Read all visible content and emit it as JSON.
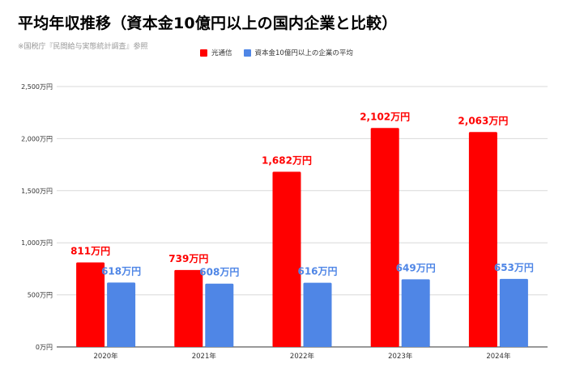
{
  "title": "平均年収推移（資本金10億円以上の国内企業と比較）",
  "subtitle": "※国税庁『民間給与実態統計調査』参照",
  "colors": {
    "series1": "#ff0000",
    "series2": "#4f86e6",
    "grid": "#d9d9d9",
    "axis": "#333333",
    "label1": "#ff0000",
    "label2": "#4f86e6"
  },
  "chart_data": {
    "type": "bar",
    "categories": [
      "2020年",
      "2021年",
      "2022年",
      "2023年",
      "2024年"
    ],
    "series": [
      {
        "name": "光通信",
        "values": [
          811,
          739,
          1682,
          2102,
          2063
        ],
        "labels": [
          "811万円",
          "739万円",
          "1,682万円",
          "2,102万円",
          "2,063万円"
        ]
      },
      {
        "name": "資本金10億円以上の企業の平均",
        "values": [
          618,
          608,
          616,
          649,
          653
        ],
        "labels": [
          "618万円",
          "608万円",
          "616万円",
          "649万円",
          "653万円"
        ]
      }
    ],
    "ylim": [
      0,
      2500
    ],
    "yticks": [
      0,
      500,
      1000,
      1500,
      2000,
      2500
    ],
    "ytick_labels": [
      "0万円",
      "500万円",
      "1,000万円",
      "1,500万円",
      "2,000万円",
      "2,500万円"
    ],
    "grid": true,
    "legend": "top"
  }
}
